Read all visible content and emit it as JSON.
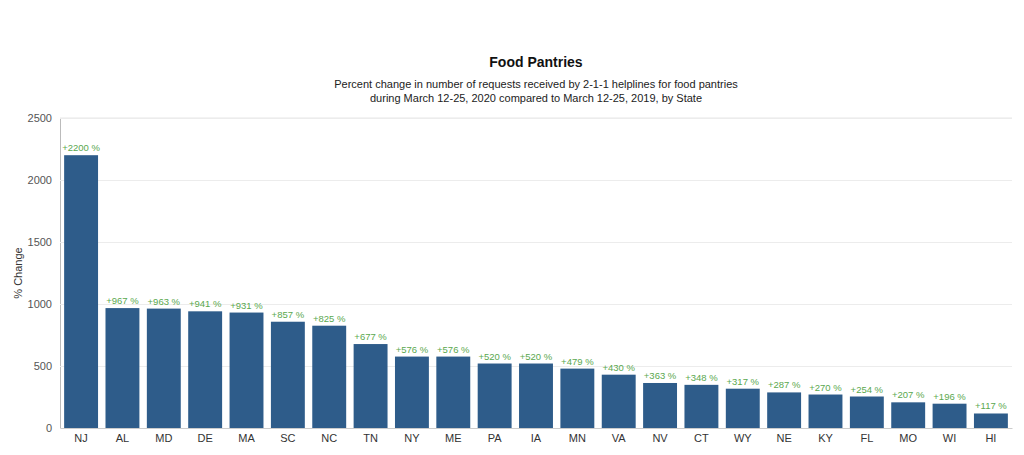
{
  "chart_data": {
    "type": "bar",
    "title": "Food Pantries",
    "subtitle": [
      "Percent change in number of requests received by 2-1-1 helplines for food pantries",
      "during March 12-25, 2020 compared to March 12-25, 2019, by State"
    ],
    "y_label": "% Change",
    "categories": [
      "NJ",
      "AL",
      "MD",
      "DE",
      "MA",
      "SC",
      "NC",
      "TN",
      "NY",
      "ME",
      "PA",
      "IA",
      "MN",
      "VA",
      "NV",
      "CT",
      "WY",
      "NE",
      "KY",
      "FL",
      "MO",
      "WI",
      "HI"
    ],
    "values": [
      2200,
      967,
      963,
      941,
      931,
      857,
      825,
      677,
      576,
      576,
      520,
      520,
      479,
      430,
      363,
      348,
      317,
      287,
      270,
      254,
      207,
      196,
      117
    ],
    "value_labels": [
      "+2200 %",
      "+967 %",
      "+963 %",
      "+941 %",
      "+931 %",
      "+857 %",
      "+825 %",
      "+677 %",
      "+576 %",
      "+576 %",
      "+520 %",
      "+520 %",
      "+479 %",
      "+430 %",
      "+363 %",
      "+348 %",
      "+317 %",
      "+287 %",
      "+270 %",
      "+254 %",
      "+207 %",
      "+196 %",
      "+117 %"
    ],
    "color": "#2e5c8a",
    "ylim": [
      0,
      2500
    ],
    "yticks": [
      0,
      500,
      1000,
      1500,
      2000,
      2500
    ],
    "grid": true,
    "data_labels": true
  }
}
